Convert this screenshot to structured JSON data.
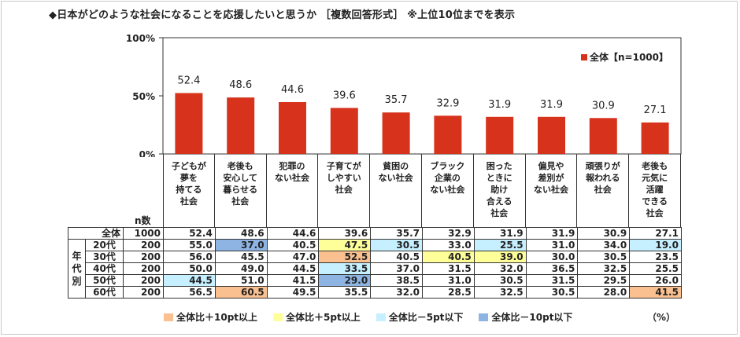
{
  "title": "◆日本がどのような社会になることを応援したいと思うか ［複数回答形式］ ※上位10位までを表示",
  "colors": {
    "bar": "#d7321c",
    "plus10": "#fac090",
    "plus5": "#ffff99",
    "minus5": "#c6efff",
    "minus10": "#8db4e2"
  },
  "chart_data": {
    "type": "bar",
    "categories": [
      "子どもが\n夢を\n持てる\n社会",
      "老後も\n安心して\n暮らせる\n社会",
      "犯罪の\nない社会",
      "子育てが\nしやすい\n社会",
      "貧困の\nない社会",
      "ブラック\n企業の\nない社会",
      "困った\nときに\n助け\n合える\n社会",
      "偏見や\n差別が\nない社会",
      "頑張りが\n報われる\n社会",
      "老後も\n元気に\n活躍\nできる\n社会"
    ],
    "series": [
      {
        "name": "全体【n=1000】",
        "values": [
          52.4,
          48.6,
          44.6,
          39.6,
          35.7,
          32.9,
          31.9,
          31.9,
          30.9,
          27.1
        ]
      }
    ],
    "value_labels": [
      "52.4",
      "48.6",
      "44.6",
      "39.6",
      "35.7",
      "32.9",
      "31.9",
      "31.9",
      "30.9",
      "27.1"
    ],
    "ylim": [
      0,
      100
    ],
    "yticks": [
      "0%",
      "50%",
      "100%"
    ],
    "legend_position": "top-right",
    "grid": false
  },
  "table": {
    "n_header": "n数",
    "group_label": "年\n代\n別",
    "total": {
      "label": "全体",
      "n": "1000",
      "values": [
        "52.4",
        "48.6",
        "44.6",
        "39.6",
        "35.7",
        "32.9",
        "31.9",
        "31.9",
        "30.9",
        "27.1"
      ]
    },
    "rows": [
      {
        "label": "20代",
        "n": "200",
        "values": [
          "55.0",
          "37.0",
          "40.5",
          "47.5",
          "30.5",
          "33.0",
          "25.5",
          "31.0",
          "34.0",
          "19.0"
        ],
        "highlights": [
          "",
          "minus10",
          "",
          "plus5",
          "minus5",
          "",
          "minus5",
          "",
          "",
          "minus5"
        ]
      },
      {
        "label": "30代",
        "n": "200",
        "values": [
          "56.0",
          "45.5",
          "47.0",
          "52.5",
          "40.5",
          "40.5",
          "39.0",
          "30.0",
          "30.5",
          "23.5"
        ],
        "highlights": [
          "",
          "",
          "",
          "plus10",
          "",
          "plus5",
          "plus5",
          "",
          "",
          ""
        ]
      },
      {
        "label": "40代",
        "n": "200",
        "values": [
          "50.0",
          "49.0",
          "44.5",
          "33.5",
          "37.0",
          "31.5",
          "32.0",
          "36.5",
          "32.5",
          "25.5"
        ],
        "highlights": [
          "",
          "",
          "",
          "minus5",
          "",
          "",
          "",
          "",
          "",
          ""
        ]
      },
      {
        "label": "50代",
        "n": "200",
        "values": [
          "44.5",
          "51.0",
          "41.5",
          "29.0",
          "38.5",
          "31.0",
          "30.5",
          "31.5",
          "29.5",
          "26.0"
        ],
        "highlights": [
          "minus5",
          "",
          "",
          "minus10",
          "",
          "",
          "",
          "",
          "",
          ""
        ]
      },
      {
        "label": "60代",
        "n": "200",
        "values": [
          "56.5",
          "60.5",
          "49.5",
          "35.5",
          "32.0",
          "28.5",
          "32.5",
          "30.5",
          "28.0",
          "41.5"
        ],
        "highlights": [
          "",
          "plus10",
          "",
          "",
          "",
          "",
          "",
          "",
          "",
          "plus10"
        ]
      }
    ]
  },
  "footer": {
    "keys": [
      {
        "id": "plus10",
        "label": "全体比＋10pt以上"
      },
      {
        "id": "plus5",
        "label": "全体比＋5pt以上"
      },
      {
        "id": "minus5",
        "label": "全体比－5pt以下"
      },
      {
        "id": "minus10",
        "label": "全体比－10pt以下"
      }
    ],
    "unit": "（%）"
  }
}
